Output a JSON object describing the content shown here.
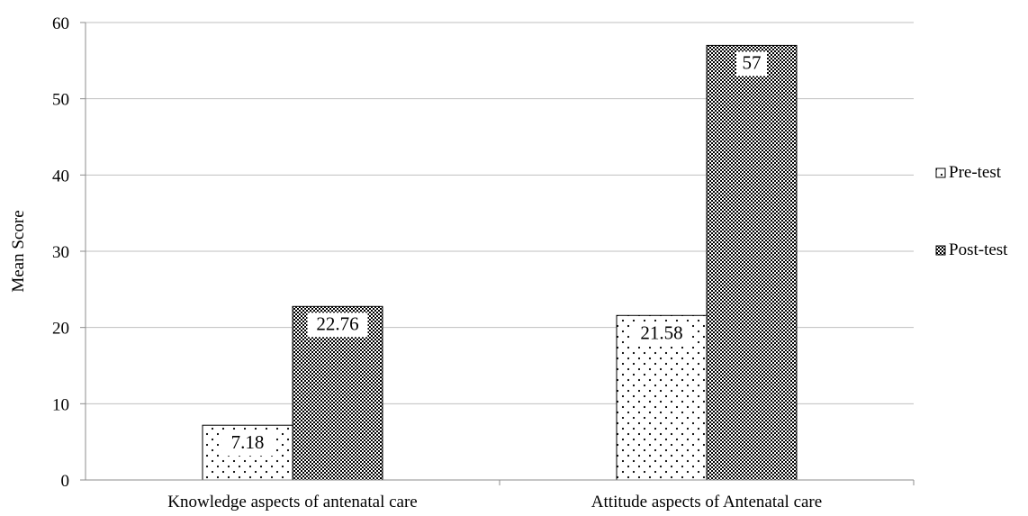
{
  "chart_data": {
    "type": "bar",
    "categories": [
      "Knowledge aspects of antenatal care",
      "Attitude aspects of Antenatal care"
    ],
    "series": [
      {
        "name": "Pre-test",
        "values": [
          7.18,
          21.58
        ],
        "labels": [
          "7.18",
          "21.58"
        ],
        "pattern": "dots"
      },
      {
        "name": "Post-test",
        "values": [
          22.76,
          57
        ],
        "labels": [
          "22.76",
          "57"
        ],
        "pattern": "checker"
      }
    ],
    "ylabel": "Mean Score",
    "xlabel": "",
    "ylim": [
      0,
      60
    ],
    "yticks": [
      0,
      10,
      20,
      30,
      40,
      50,
      60
    ],
    "grid": true,
    "legend_position": "right",
    "colors": {
      "grid": "#bfbfbf",
      "axis": "#8c8c8c",
      "bar_border": "#000000",
      "fill": "#ffffff",
      "pattern": "#000000"
    }
  }
}
